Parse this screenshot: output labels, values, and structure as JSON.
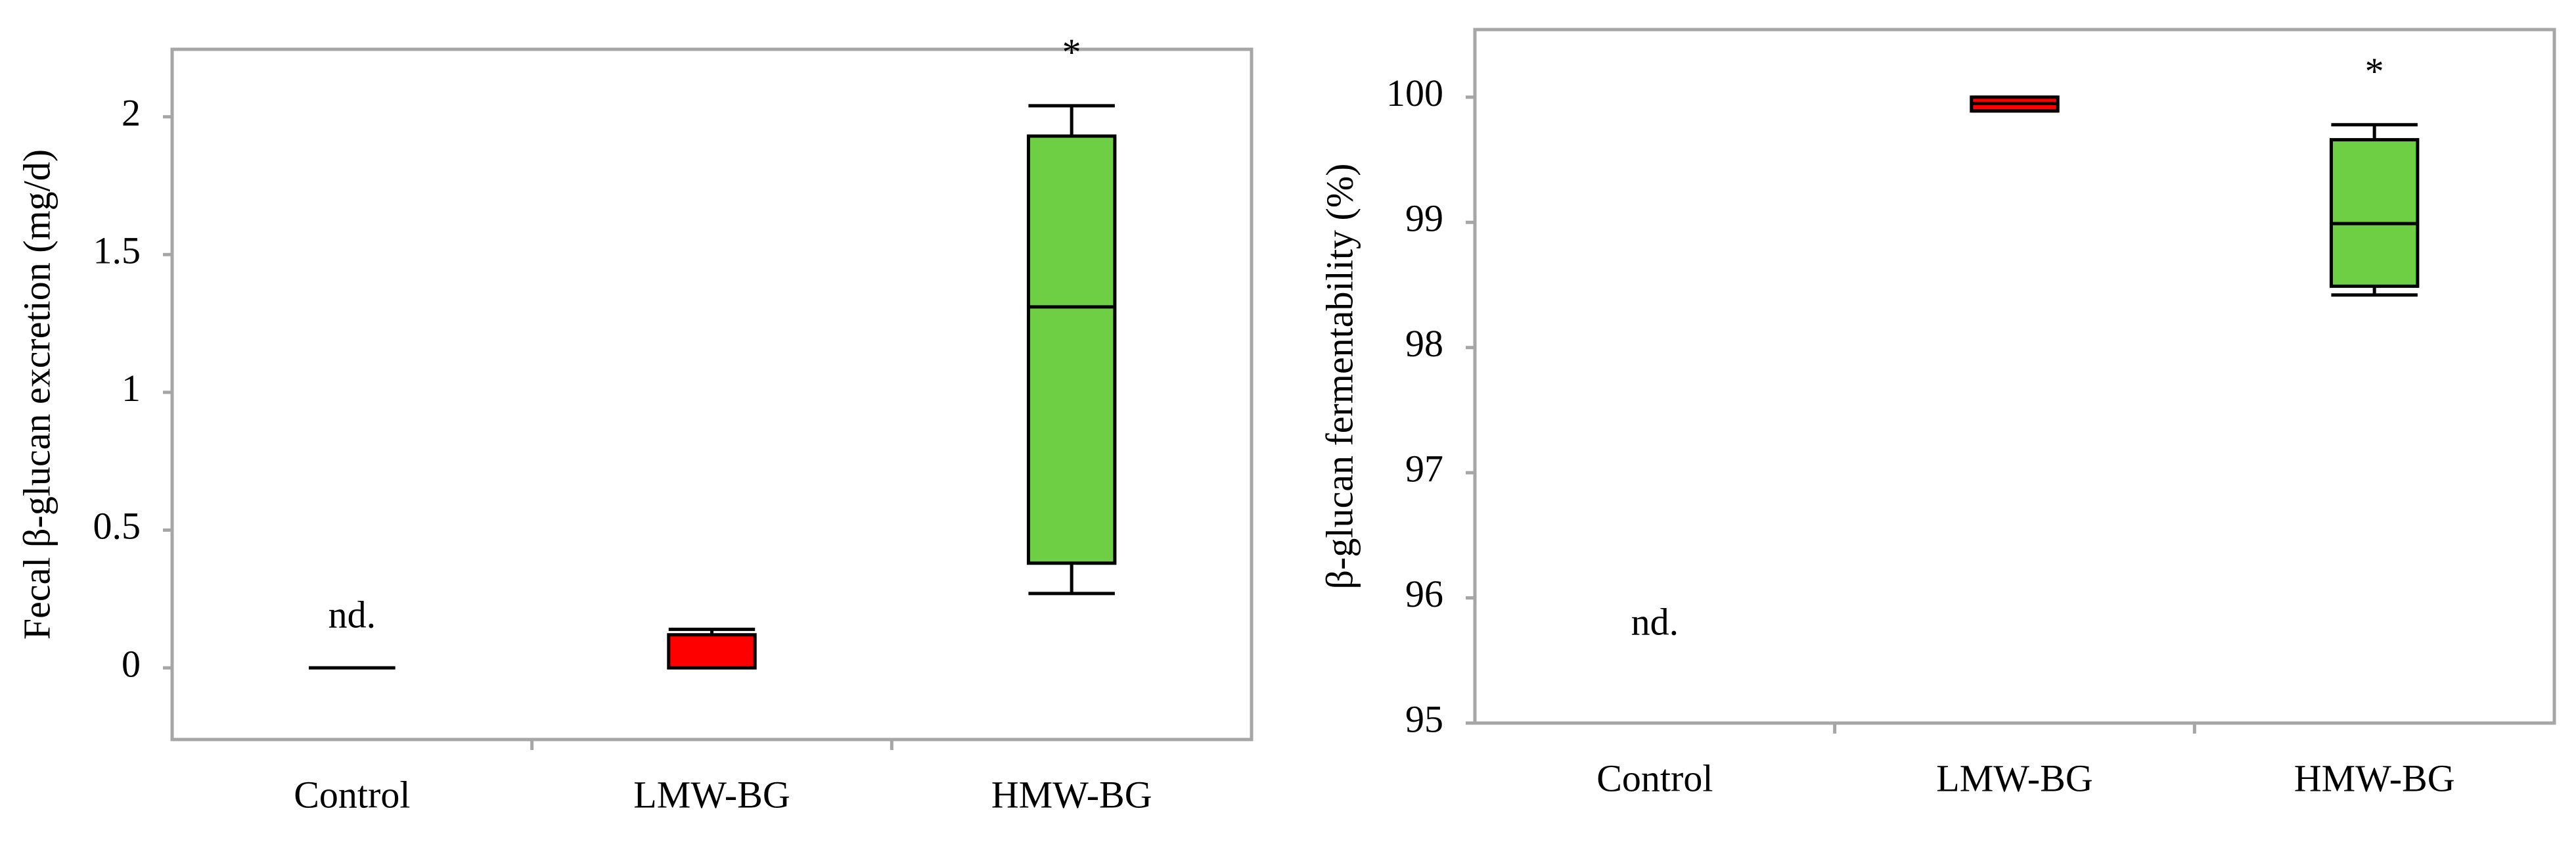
{
  "chart_data": [
    {
      "type": "box",
      "ylabel": "Fecal β-glucan excretion (mg/d)",
      "categories": [
        "Control",
        "LMW-BG",
        "HMW-BG"
      ],
      "boxes": [
        {
          "min": 0,
          "q1": 0,
          "median": 0,
          "q3": 0,
          "max": 0,
          "color": "#000000"
        },
        {
          "min": 0,
          "q1": 0,
          "median": 0,
          "q3": 0.12,
          "max": 0.14,
          "color": "#ff0000"
        },
        {
          "min": 0.27,
          "q1": 0.38,
          "median": 1.31,
          "q3": 1.93,
          "max": 2.04,
          "color": "#6fcf44"
        }
      ],
      "annotations": [
        "nd.",
        null,
        "*"
      ],
      "ylim": [
        -0.26,
        2.245
      ],
      "yticks": [
        0,
        0.5,
        1,
        1.5,
        2
      ]
    },
    {
      "type": "box",
      "ylabel": "β-glucan fermentability (%)",
      "categories": [
        "Control",
        "LMW-BG",
        "HMW-BG"
      ],
      "boxes": [
        null,
        {
          "min": 99.89,
          "q1": 99.89,
          "median": 99.95,
          "q3": 100,
          "max": 100,
          "color": "#ff0000"
        },
        {
          "min": 98.42,
          "q1": 98.49,
          "median": 98.99,
          "q3": 99.66,
          "max": 99.78,
          "color": "#6fcf44"
        }
      ],
      "annotations": [
        "nd.",
        null,
        "*"
      ],
      "ylim": [
        95,
        100.54
      ],
      "yticks": [
        95,
        96,
        97,
        98,
        99,
        100
      ]
    }
  ]
}
